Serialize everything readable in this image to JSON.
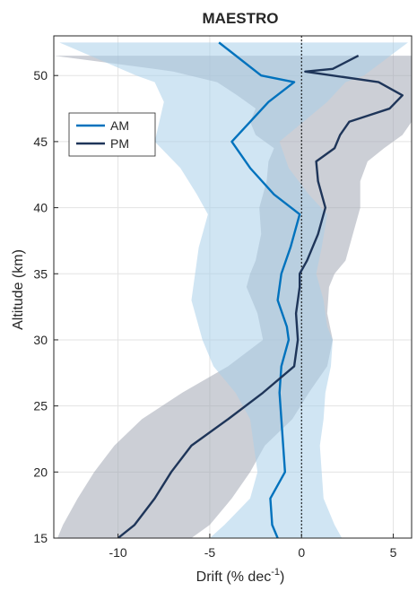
{
  "chart_data": {
    "type": "line",
    "title": "MAESTRO",
    "xlabel_main": "Drift (% dec",
    "xlabel_sup": "-1",
    "xlabel_close": ")",
    "ylabel": "Altitude (km)",
    "xlim": [
      -13.5,
      6
    ],
    "ylim": [
      15,
      53
    ],
    "xticks": [
      -10,
      -5,
      0,
      5
    ],
    "yticks": [
      15,
      20,
      25,
      30,
      35,
      40,
      45,
      50
    ],
    "grid": true,
    "legend_position": "upper-left",
    "zero_line": 0,
    "series": [
      {
        "name": "AM",
        "color": "#0072bd",
        "band_color": "#a9cfe9",
        "altitude": [
          52.5,
          50,
          49.5,
          48,
          45,
          43,
          41,
          39.5,
          37,
          35,
          33,
          31,
          30,
          28,
          26,
          24,
          22,
          20,
          18,
          16,
          15
        ],
        "values": [
          -4.5,
          -2.2,
          -0.4,
          -1.8,
          -3.8,
          -2.8,
          -1.5,
          -0.1,
          -0.6,
          -1.1,
          -1.3,
          -0.8,
          -0.7,
          -1.1,
          -1.2,
          -1.1,
          -1.0,
          -0.9,
          -1.7,
          -1.6,
          -1.3
        ],
        "lower": [
          -13.2,
          -9.0,
          -8.0,
          -7.5,
          -8.0,
          -6.6,
          -5.7,
          -5.1,
          -5.6,
          -5.8,
          -6.0,
          -5.6,
          -5.4,
          -4.8,
          -3.6,
          -2.8,
          -2.6,
          -2.4,
          -2.8,
          -4.2,
          -5.0
        ],
        "upper": [
          5.8,
          3.4,
          2.4,
          1.4,
          -1.2,
          -0.7,
          0.4,
          1.4,
          1.1,
          0.8,
          1.2,
          1.4,
          1.7,
          1.6,
          1.3,
          1.2,
          1.0,
          1.1,
          1.2,
          1.8,
          2.2
        ]
      },
      {
        "name": "PM",
        "color": "#1e3559",
        "band_color": "#a3a8b5",
        "altitude": [
          51.5,
          50.5,
          50.3,
          49.5,
          48.5,
          47.5,
          46.5,
          45.5,
          44.5,
          43.5,
          42,
          40,
          38,
          36,
          35,
          34,
          32,
          30,
          28,
          26,
          24,
          22,
          20,
          18,
          16,
          15
        ],
        "values": [
          3.1,
          1.7,
          0.2,
          4.2,
          5.5,
          4.8,
          2.6,
          2.1,
          1.8,
          0.8,
          0.9,
          1.3,
          0.9,
          0.3,
          -0.1,
          -0.1,
          -0.3,
          -0.2,
          -0.4,
          -2.1,
          -4.0,
          -6.0,
          -7.1,
          -8.0,
          -9.1,
          -10.0
        ],
        "lower": [
          -13.5,
          -8.0,
          -7.0,
          -4.6,
          -3.5,
          -2.5,
          -2.8,
          -2.5,
          -1.5,
          -1.8,
          -1.9,
          -2.3,
          -2.2,
          -2.5,
          -2.8,
          -3.0,
          -2.4,
          -2.1,
          -4.0,
          -6.5,
          -8.7,
          -10.2,
          -11.3,
          -12.2,
          -13.0,
          -13.3
        ],
        "upper": [
          6.0,
          6.0,
          6.0,
          6.0,
          6.0,
          6.0,
          6.0,
          5.5,
          4.5,
          3.6,
          3.2,
          3.2,
          2.8,
          2.4,
          1.8,
          1.5,
          1.4,
          1.7,
          1.4,
          0.4,
          -0.5,
          -2.0,
          -2.8,
          -3.8,
          -5.0,
          -6.0
        ]
      }
    ]
  }
}
